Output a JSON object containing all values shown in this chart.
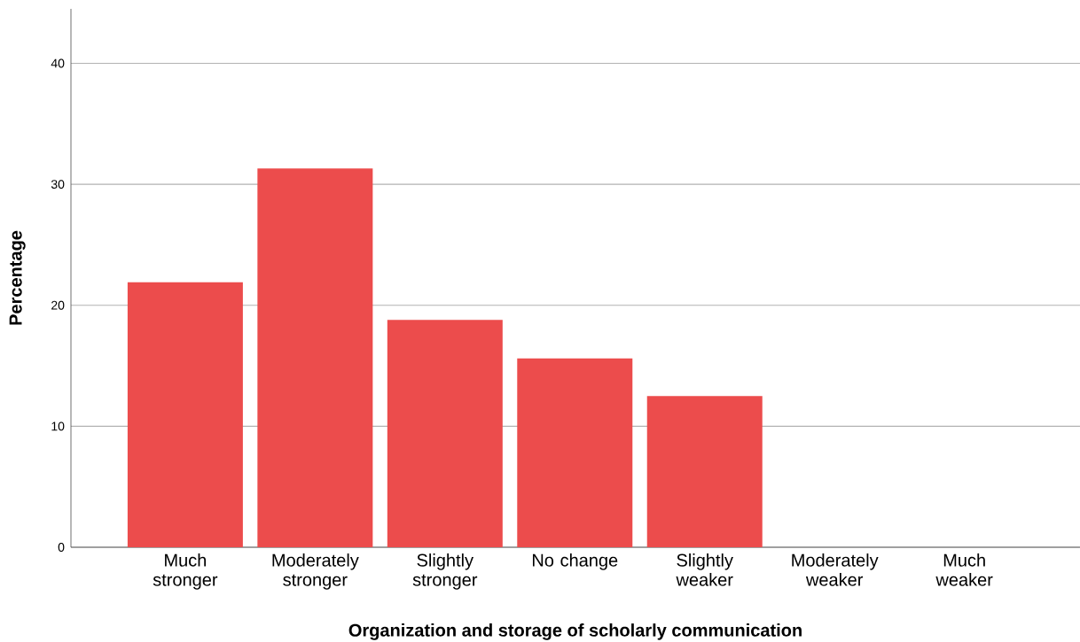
{
  "chart_data": {
    "type": "bar",
    "xlabel": "Organization and storage of scholarly communication",
    "ylabel": "Percentage",
    "categories": [
      "Much stronger",
      "Moderately stronger",
      "Slightly stronger",
      "No change",
      "Slightly weaker",
      "Moderately weaker",
      "Much weaker"
    ],
    "values": [
      21.9,
      31.3,
      18.8,
      15.6,
      12.5,
      0,
      0
    ],
    "color": "#ec4c4c",
    "ylim": [
      0,
      44.5
    ],
    "yticks": [
      0,
      10,
      20,
      30,
      40
    ],
    "grid": "y"
  }
}
